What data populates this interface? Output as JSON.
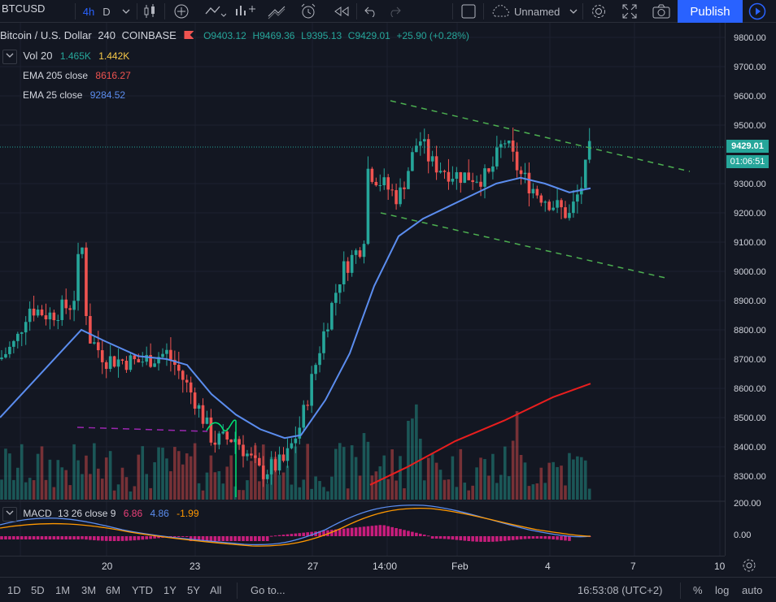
{
  "toolbar": {
    "symbol": "BTCUSD",
    "interval_active": "4h",
    "interval_day": "D",
    "layout_name": "Unnamed",
    "publish_label": "Publish"
  },
  "legend": {
    "title": "Bitcoin / U.S. Dollar",
    "interval": "240",
    "exchange": "COINBASE",
    "open": "O9403.12",
    "high": "H9469.36",
    "low": "L9395.13",
    "close": "C9429.01",
    "change": "+25.90 (+0.28%)",
    "vol_label": "Vol 20",
    "vol_value1": "1.465K",
    "vol_value2": "1.442K",
    "ema1_label": "EMA 205 close",
    "ema1_value": "8616.27",
    "ema2_label": "EMA 25 close",
    "ema2_value": "9284.52",
    "macd_label": "MACD",
    "macd_params": "13 26 close 9",
    "macd_v1": "6.86",
    "macd_v2": "4.86",
    "macd_v3": "-1.99"
  },
  "price_axis": {
    "ticks": [
      "9800.00",
      "9700.00",
      "9600.00",
      "9500.00",
      "9300.00",
      "9200.00",
      "9100.00",
      "9000.00",
      "8900.00",
      "8800.00",
      "8700.00",
      "8600.00",
      "8500.00",
      "8400.00",
      "8300.00"
    ],
    "last_price": "9429.01",
    "countdown": "01:06:51",
    "macd_ticks": [
      "200.00",
      "0.00"
    ]
  },
  "time_axis": {
    "ticks": [
      "20",
      "23",
      "27",
      "14:00",
      "Feb",
      "4",
      "7",
      "10"
    ]
  },
  "bottom": {
    "ranges": [
      "1D",
      "5D",
      "1M",
      "3M",
      "6M",
      "YTD",
      "1Y",
      "5Y",
      "All"
    ],
    "goto": "Go to...",
    "clock": "16:53:08 (UTC+2)",
    "percent": "%",
    "log": "log",
    "auto": "auto"
  },
  "colors": {
    "up": "#26a69a",
    "down": "#ef5350",
    "ema205": "#e91e1e",
    "ema25": "#5b8def",
    "accent": "#2962ff"
  },
  "chart_data": {
    "type": "candlestick",
    "symbol": "BTCUSD",
    "ylim": [
      8240,
      9850
    ],
    "ema205_close_last": 8616.27,
    "ema25_close_last": 9284.52,
    "last": {
      "open": 9403.12,
      "high": 9469.36,
      "low": 9395.13,
      "close": 9429.01
    },
    "trendlines": [
      "upper channel ~9580 falling to ~9350",
      "lower channel ~9200 falling to ~8980"
    ]
  }
}
